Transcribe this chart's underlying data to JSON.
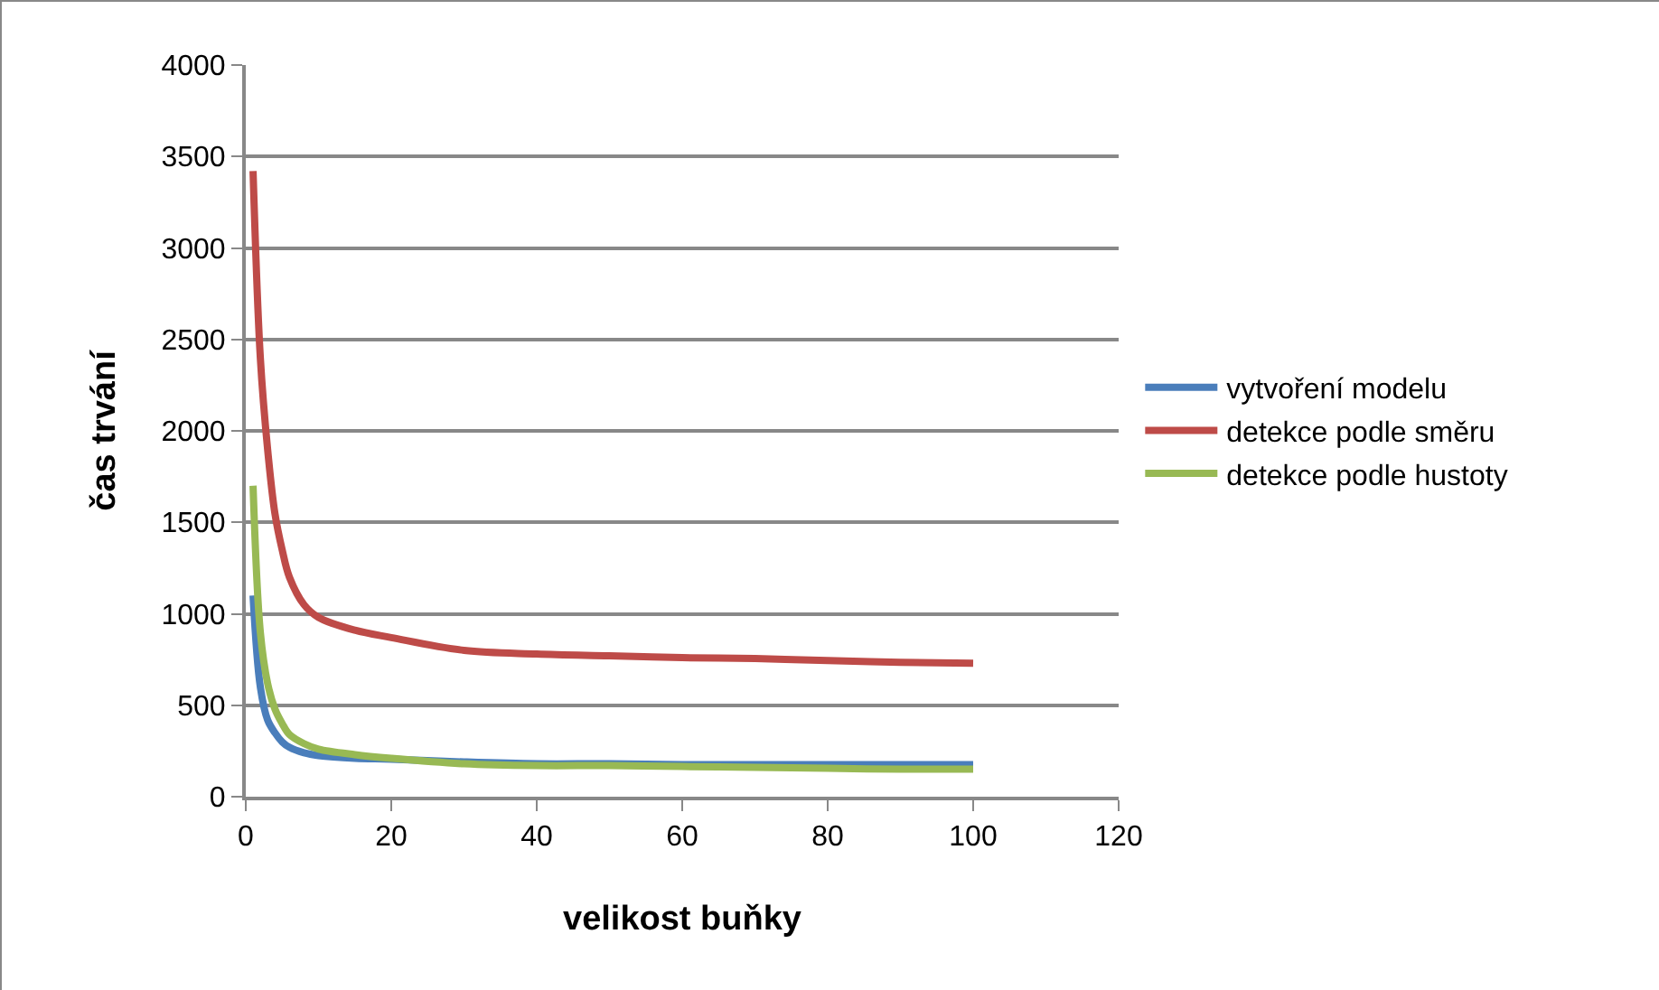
{
  "chart_data": {
    "type": "line",
    "xlabel": "velikost buňky",
    "ylabel": "čas trvání",
    "x": [
      1,
      2,
      3,
      4,
      5,
      6,
      8,
      10,
      15,
      20,
      30,
      40,
      50,
      60,
      70,
      80,
      90,
      100
    ],
    "series": [
      {
        "name": "vytvoření modelu",
        "color": "#4a7ebb",
        "values": [
          1100,
          600,
          420,
          350,
          300,
          270,
          240,
          225,
          210,
          205,
          190,
          180,
          180,
          175,
          175,
          175,
          175,
          175
        ]
      },
      {
        "name": "detekce podle směru",
        "color": "#be4b48",
        "values": [
          3420,
          2400,
          1900,
          1550,
          1350,
          1200,
          1050,
          980,
          910,
          870,
          800,
          780,
          770,
          760,
          755,
          745,
          735,
          730
        ]
      },
      {
        "name": "detekce podle hustoty",
        "color": "#98b954",
        "values": [
          1700,
          900,
          620,
          480,
          400,
          340,
          290,
          260,
          230,
          210,
          180,
          170,
          170,
          165,
          160,
          155,
          150,
          150
        ]
      }
    ],
    "xlim": [
      0,
      120
    ],
    "xticks": [
      0,
      20,
      40,
      60,
      80,
      100,
      120
    ],
    "ylim": [
      0,
      4000
    ],
    "yticks": [
      0,
      500,
      1000,
      1500,
      2000,
      2500,
      3000,
      3500,
      4000
    ],
    "grid": "y",
    "legend": "right",
    "marker": "none",
    "line_style": "solid"
  }
}
